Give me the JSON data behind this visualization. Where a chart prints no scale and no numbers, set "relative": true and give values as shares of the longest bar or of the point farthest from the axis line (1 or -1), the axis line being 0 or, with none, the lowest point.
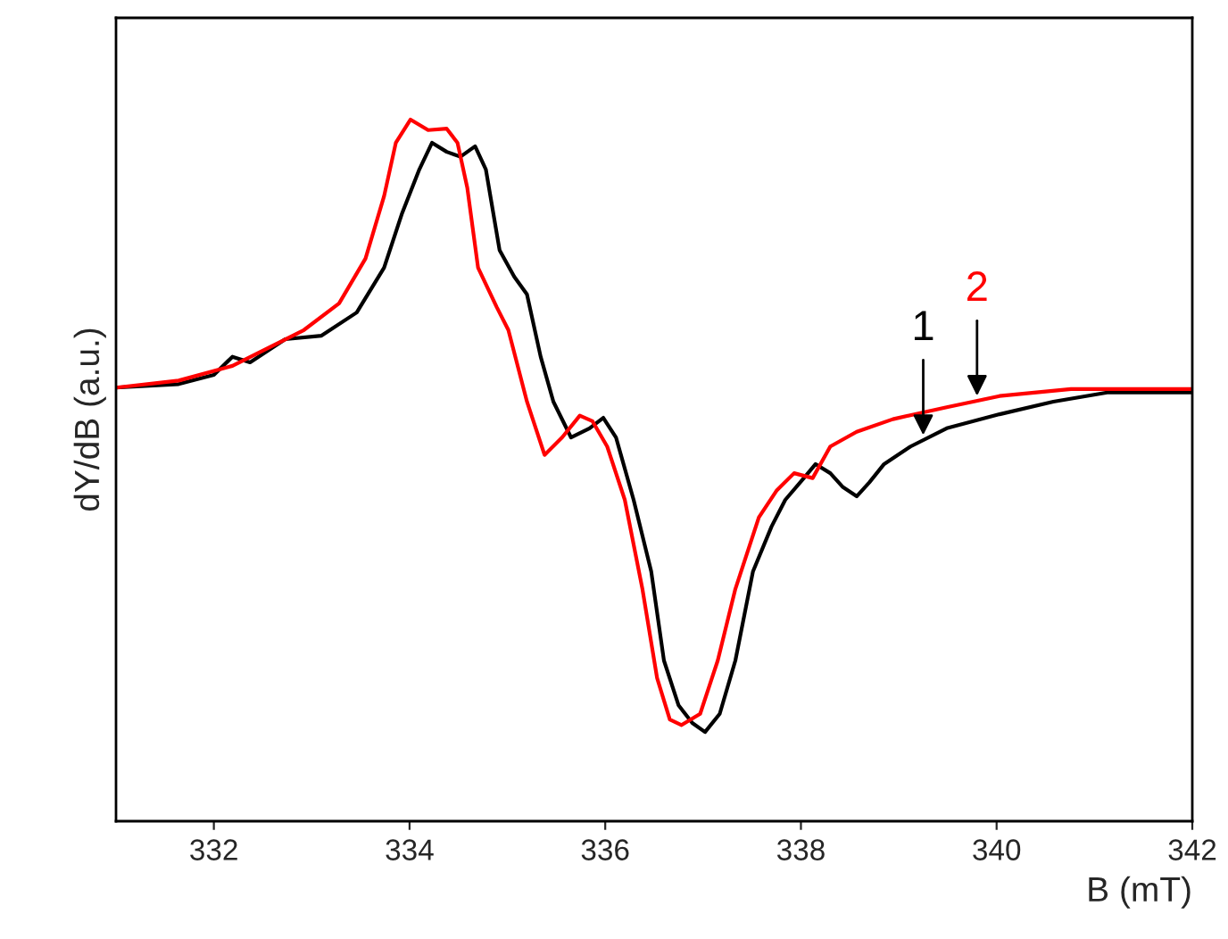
{
  "chart_data": {
    "type": "line",
    "xlabel": "B (mT)",
    "ylabel": "dY/dB (a.u.)",
    "relative": true,
    "xlim": [
      331,
      342
    ],
    "xticks": [
      332,
      334,
      336,
      338,
      340,
      342
    ],
    "grid": false,
    "legend": false,
    "series": [
      {
        "name": "1",
        "color": "#000000",
        "x": [
          331.0,
          331.64,
          332.0,
          332.19,
          332.37,
          332.73,
          333.1,
          333.46,
          333.74,
          333.92,
          334.1,
          334.23,
          334.38,
          334.52,
          334.67,
          334.78,
          334.92,
          335.07,
          335.2,
          335.34,
          335.47,
          335.65,
          335.84,
          335.98,
          336.11,
          336.29,
          336.47,
          336.6,
          336.75,
          336.89,
          337.02,
          337.17,
          337.33,
          337.51,
          337.7,
          337.84,
          338.03,
          338.15,
          338.3,
          338.43,
          338.57,
          338.7,
          338.85,
          339.12,
          339.49,
          340.03,
          340.58,
          341.13,
          342.0
        ],
        "values": [
          0.618,
          0.623,
          0.636,
          0.662,
          0.654,
          0.687,
          0.692,
          0.725,
          0.789,
          0.865,
          0.929,
          0.967,
          0.954,
          0.947,
          0.962,
          0.929,
          0.814,
          0.776,
          0.751,
          0.662,
          0.598,
          0.547,
          0.56,
          0.575,
          0.547,
          0.458,
          0.356,
          0.229,
          0.165,
          0.14,
          0.127,
          0.153,
          0.229,
          0.356,
          0.42,
          0.458,
          0.489,
          0.509,
          0.496,
          0.476,
          0.463,
          0.483,
          0.509,
          0.534,
          0.56,
          0.58,
          0.598,
          0.611,
          0.611
        ]
      },
      {
        "name": "2",
        "color": "#ff0000",
        "x": [
          331.0,
          331.64,
          332.19,
          332.55,
          332.92,
          333.28,
          333.55,
          333.74,
          333.86,
          334.01,
          334.19,
          334.38,
          334.49,
          334.59,
          334.7,
          334.89,
          335.01,
          335.2,
          335.38,
          335.56,
          335.74,
          335.87,
          336.02,
          336.2,
          336.38,
          336.53,
          336.66,
          336.78,
          336.97,
          337.15,
          337.33,
          337.57,
          337.75,
          337.93,
          338.12,
          338.3,
          338.57,
          338.94,
          339.49,
          340.03,
          340.76,
          342.0
        ],
        "values": [
          0.618,
          0.628,
          0.649,
          0.674,
          0.7,
          0.738,
          0.802,
          0.891,
          0.967,
          1.0,
          0.985,
          0.987,
          0.967,
          0.903,
          0.789,
          0.733,
          0.7,
          0.598,
          0.522,
          0.547,
          0.578,
          0.57,
          0.534,
          0.458,
          0.331,
          0.204,
          0.145,
          0.137,
          0.153,
          0.229,
          0.331,
          0.433,
          0.471,
          0.496,
          0.489,
          0.534,
          0.555,
          0.573,
          0.59,
          0.606,
          0.616,
          0.616
        ]
      }
    ]
  }
}
